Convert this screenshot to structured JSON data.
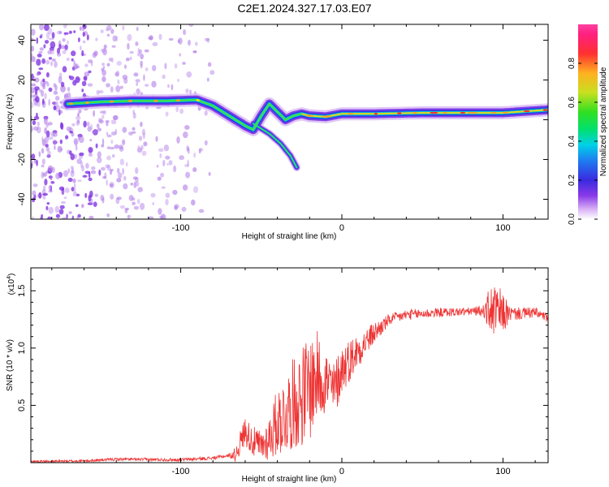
{
  "title": "C2E1.2024.327.17.03.E07",
  "chart_data": [
    {
      "type": "heatmap",
      "xlabel": "Height of straight line (km)",
      "ylabel": "Frequency (Hz)",
      "xlim": [
        -193,
        128
      ],
      "ylim": [
        -50,
        48
      ],
      "xticks": [
        -100,
        0,
        100
      ],
      "yticks": [
        -40,
        -20,
        0,
        20,
        40
      ],
      "colorbar": {
        "label": "Normalized spectral amplitude",
        "range": [
          0,
          1
        ],
        "ticks": [
          "0.0",
          "0.2",
          "0.4",
          "0.6",
          "0.8"
        ],
        "tick_values": [
          0,
          0.2,
          0.4,
          0.6,
          0.8
        ]
      },
      "ridge": [
        {
          "x": -170,
          "y": 8
        },
        {
          "x": -150,
          "y": 9
        },
        {
          "x": -130,
          "y": 9.5
        },
        {
          "x": -110,
          "y": 9.5
        },
        {
          "x": -90,
          "y": 10
        },
        {
          "x": -80,
          "y": 7
        },
        {
          "x": -70,
          "y": 2
        },
        {
          "x": -60,
          "y": -3
        },
        {
          "x": -55,
          "y": -5
        },
        {
          "x": -50,
          "y": 2
        },
        {
          "x": -45,
          "y": 8
        },
        {
          "x": -40,
          "y": 4
        },
        {
          "x": -35,
          "y": 0
        },
        {
          "x": -30,
          "y": 2
        },
        {
          "x": -25,
          "y": 3
        },
        {
          "x": -20,
          "y": 2
        },
        {
          "x": -10,
          "y": 1.5
        },
        {
          "x": 0,
          "y": 3
        },
        {
          "x": 20,
          "y": 3
        },
        {
          "x": 50,
          "y": 3.5
        },
        {
          "x": 80,
          "y": 3.5
        },
        {
          "x": 100,
          "y": 3.5
        },
        {
          "x": 128,
          "y": 5
        }
      ],
      "branch": [
        {
          "x": -55,
          "y": -2
        },
        {
          "x": -45,
          "y": -7
        },
        {
          "x": -38,
          "y": -12
        },
        {
          "x": -32,
          "y": -18
        },
        {
          "x": -28,
          "y": -24
        }
      ]
    },
    {
      "type": "line",
      "xlabel": "Height of straight line (km)",
      "ylabel": "SNR (10 * v/v)",
      "scale_label_base": "(x10",
      "scale_label_exp": "4",
      "scale_label_end": ")",
      "xlim": [
        -193,
        128
      ],
      "ylim": [
        0,
        1.7
      ],
      "xticks": [
        -100,
        0,
        100
      ],
      "yticks": [
        "0.5",
        "1.0",
        "1.5"
      ],
      "ytick_values": [
        0.5,
        1.0,
        1.5
      ],
      "color": "#ee3333",
      "envelope": [
        {
          "x": -193,
          "y": 0.01
        },
        {
          "x": -160,
          "y": 0.015
        },
        {
          "x": -140,
          "y": 0.03
        },
        {
          "x": -100,
          "y": 0.025
        },
        {
          "x": -80,
          "y": 0.04
        },
        {
          "x": -66,
          "y": 0.07
        },
        {
          "x": -60,
          "y": 0.28
        },
        {
          "x": -55,
          "y": 0.18
        },
        {
          "x": -50,
          "y": 0.14
        },
        {
          "x": -45,
          "y": 0.22
        },
        {
          "x": -40,
          "y": 0.36
        },
        {
          "x": -35,
          "y": 0.42
        },
        {
          "x": -30,
          "y": 0.52
        },
        {
          "x": -25,
          "y": 0.58
        },
        {
          "x": -20,
          "y": 0.66
        },
        {
          "x": -15,
          "y": 0.76
        },
        {
          "x": -10,
          "y": 0.72
        },
        {
          "x": -5,
          "y": 0.62
        },
        {
          "x": 0,
          "y": 0.82
        },
        {
          "x": 10,
          "y": 0.98
        },
        {
          "x": 20,
          "y": 1.13
        },
        {
          "x": 30,
          "y": 1.25
        },
        {
          "x": 40,
          "y": 1.29
        },
        {
          "x": 60,
          "y": 1.31
        },
        {
          "x": 80,
          "y": 1.32
        },
        {
          "x": 92,
          "y": 1.33
        },
        {
          "x": 100,
          "y": 1.3
        },
        {
          "x": 110,
          "y": 1.3
        },
        {
          "x": 120,
          "y": 1.31
        },
        {
          "x": 128,
          "y": 1.26
        }
      ],
      "noise": [
        {
          "x": -193,
          "a": 0.01
        },
        {
          "x": -70,
          "a": 0.015
        },
        {
          "x": -62,
          "a": 0.12
        },
        {
          "x": -48,
          "a": 0.15
        },
        {
          "x": -40,
          "a": 0.3
        },
        {
          "x": -30,
          "a": 0.4
        },
        {
          "x": -20,
          "a": 0.48
        },
        {
          "x": -10,
          "a": 0.3
        },
        {
          "x": 0,
          "a": 0.22
        },
        {
          "x": 15,
          "a": 0.12
        },
        {
          "x": 30,
          "a": 0.05
        },
        {
          "x": 80,
          "a": 0.035
        },
        {
          "x": 88,
          "a": 0.05
        },
        {
          "x": 92,
          "a": 0.22
        },
        {
          "x": 98,
          "a": 0.22
        },
        {
          "x": 105,
          "a": 0.06
        },
        {
          "x": 128,
          "a": 0.04
        }
      ]
    }
  ]
}
